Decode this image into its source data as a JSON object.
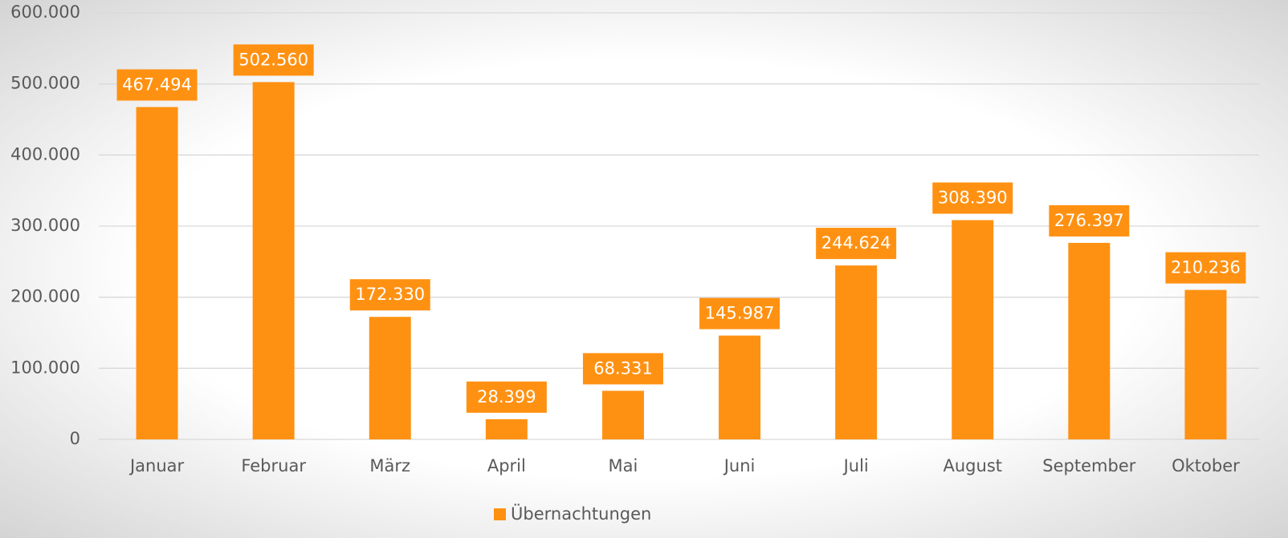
{
  "chart_data": {
    "type": "bar",
    "categories": [
      "Januar",
      "Februar",
      "März",
      "April",
      "Mai",
      "Juni",
      "Juli",
      "August",
      "September",
      "Oktober"
    ],
    "series": [
      {
        "name": "Übernachtungen",
        "color": "#ff9112",
        "values": [
          467494,
          502560,
          172330,
          28399,
          68331,
          145987,
          244624,
          308390,
          276397,
          210236
        ],
        "value_labels": [
          "467.494",
          "502.560",
          "172.330",
          "28.399",
          "68.331",
          "145.987",
          "244.624",
          "308.390",
          "276.397",
          "210.236"
        ]
      }
    ],
    "ylim": [
      0,
      600000
    ],
    "yticks": [
      0,
      {
        "value": 100000,
        "label": "100.000"
      },
      {
        "value": 200000,
        "label": "200.000"
      },
      {
        "value": 300000,
        "label": "300.000"
      },
      {
        "value": 400000,
        "label": "400.000"
      },
      {
        "value": 500000,
        "label": "500.000"
      },
      {
        "value": 600000,
        "label": "600.000"
      }
    ],
    "grid": true,
    "legend": "bottom"
  }
}
